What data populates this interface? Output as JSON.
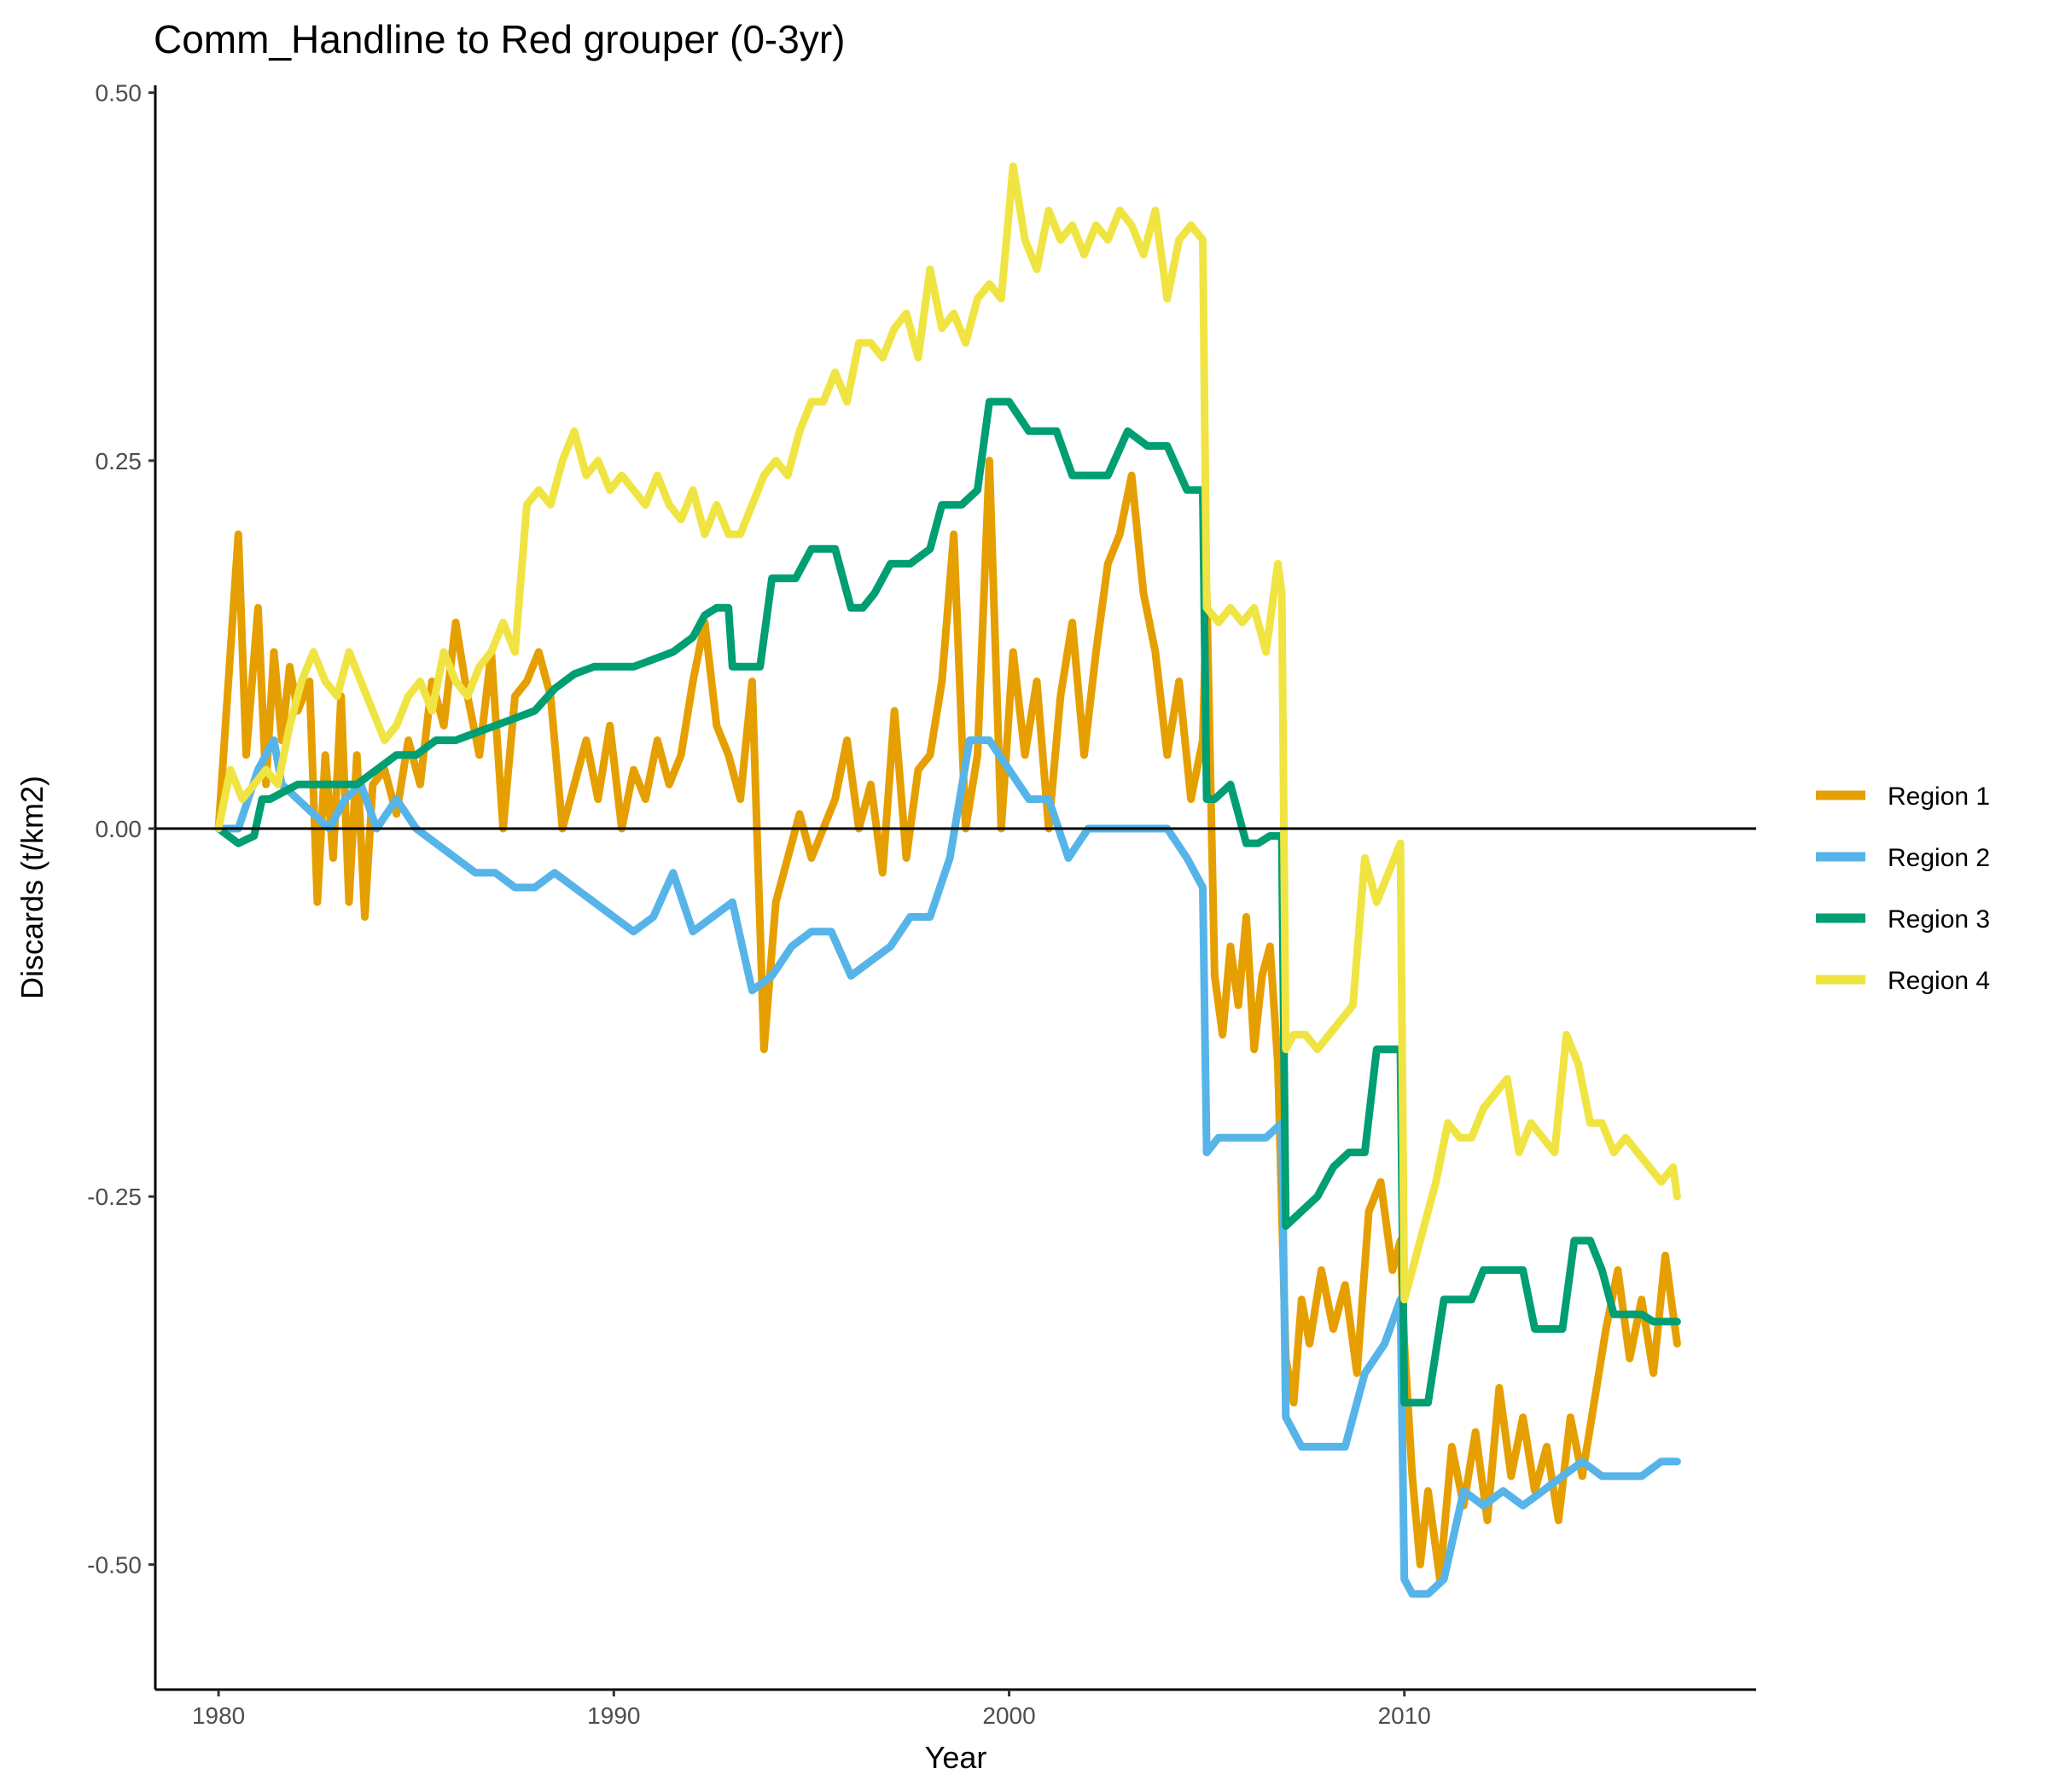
{
  "chart_data": {
    "type": "line",
    "title": "Comm_Handline to Red grouper (0-3yr)",
    "xlabel": "Year",
    "ylabel": "Discards (t/km2)",
    "xlim": [
      1978.4,
      2018.9
    ],
    "ylim": [
      -0.585,
      0.505
    ],
    "x_ticks": [
      1980,
      1990,
      2000,
      2010
    ],
    "x_tick_labels": [
      "1980",
      "1990",
      "2000",
      "2010"
    ],
    "y_ticks": [
      0.5,
      0.25,
      0.0,
      -0.25,
      -0.5
    ],
    "y_tick_labels": [
      "0.50",
      "0.25",
      "0.00",
      "-0.25",
      "-0.50"
    ],
    "hline": 0,
    "grid": false,
    "legend_position": "right",
    "series": [
      {
        "name": "Region 1",
        "color": "#E69F00",
        "x": [
          1980.0,
          1980.3,
          1980.5,
          1980.7,
          1981.0,
          1981.2,
          1981.4,
          1981.6,
          1981.8,
          1982.0,
          1982.3,
          1982.5,
          1982.7,
          1982.9,
          1983.1,
          1983.3,
          1983.5,
          1983.7,
          1983.9,
          1984.2,
          1984.5,
          1984.8,
          1985.1,
          1985.4,
          1985.7,
          1986.0,
          1986.3,
          1986.6,
          1986.9,
          1987.2,
          1987.5,
          1987.8,
          1988.1,
          1988.4,
          1988.7,
          1989.0,
          1989.3,
          1989.6,
          1989.9,
          1990.2,
          1990.5,
          1990.8,
          1991.1,
          1991.4,
          1991.7,
          1992.0,
          1992.3,
          1992.6,
          1992.9,
          1993.2,
          1993.5,
          1993.8,
          1994.1,
          1994.4,
          1994.7,
          1995.0,
          1995.3,
          1995.6,
          1995.9,
          1996.2,
          1996.5,
          1996.8,
          1997.1,
          1997.4,
          1997.7,
          1998.0,
          1998.3,
          1998.6,
          1998.9,
          1999.2,
          1999.5,
          1999.8,
          2000.1,
          2000.4,
          2000.7,
          2001.0,
          2001.3,
          2001.6,
          2001.9,
          2002.2,
          2002.5,
          2002.8,
          2003.1,
          2003.4,
          2003.7,
          2004.0,
          2004.3,
          2004.6,
          2004.9,
          2005.0,
          2005.2,
          2005.4,
          2005.6,
          2005.8,
          2006.0,
          2006.2,
          2006.4,
          2006.6,
          2006.8,
          2007.0,
          2007.2,
          2007.4,
          2007.6,
          2007.9,
          2008.2,
          2008.5,
          2008.8,
          2009.1,
          2009.4,
          2009.7,
          2009.9,
          2010.0,
          2010.2,
          2010.4,
          2010.6,
          2010.9,
          2011.2,
          2011.5,
          2011.8,
          2012.1,
          2012.4,
          2012.7,
          2013.0,
          2013.3,
          2013.6,
          2013.9,
          2014.2,
          2014.5,
          2014.8,
          2015.1,
          2015.4,
          2015.7,
          2016.0,
          2016.3,
          2016.6,
          2016.9
        ],
        "y": [
          0.0,
          0.12,
          0.2,
          0.05,
          0.15,
          0.03,
          0.12,
          0.06,
          0.11,
          0.08,
          0.1,
          -0.05,
          0.05,
          -0.02,
          0.09,
          -0.05,
          0.05,
          -0.06,
          0.03,
          0.04,
          0.01,
          0.06,
          0.03,
          0.1,
          0.07,
          0.14,
          0.09,
          0.05,
          0.12,
          0.0,
          0.09,
          0.1,
          0.12,
          0.09,
          0.0,
          0.03,
          0.06,
          0.02,
          0.07,
          0.0,
          0.04,
          0.02,
          0.06,
          0.03,
          0.05,
          0.1,
          0.14,
          0.07,
          0.05,
          0.02,
          0.1,
          -0.15,
          -0.05,
          -0.02,
          0.01,
          -0.02,
          0.0,
          0.02,
          0.06,
          0.0,
          0.03,
          -0.03,
          0.08,
          -0.02,
          0.04,
          0.05,
          0.1,
          0.2,
          0.0,
          0.05,
          0.25,
          0.0,
          0.12,
          0.05,
          0.1,
          0.0,
          0.09,
          0.14,
          0.05,
          0.12,
          0.18,
          0.2,
          0.24,
          0.16,
          0.12,
          0.05,
          0.1,
          0.02,
          0.06,
          0.16,
          -0.1,
          -0.14,
          -0.08,
          -0.12,
          -0.06,
          -0.15,
          -0.1,
          -0.08,
          -0.16,
          -0.36,
          -0.39,
          -0.32,
          -0.35,
          -0.3,
          -0.34,
          -0.31,
          -0.37,
          -0.26,
          -0.24,
          -0.3,
          -0.28,
          -0.35,
          -0.44,
          -0.5,
          -0.45,
          -0.51,
          -0.42,
          -0.46,
          -0.41,
          -0.47,
          -0.38,
          -0.44,
          -0.4,
          -0.45,
          -0.42,
          -0.47,
          -0.4,
          -0.44,
          -0.39,
          -0.34,
          -0.3,
          -0.36,
          -0.32,
          -0.37,
          -0.29,
          -0.35
        ],
        "stroke": 9
      },
      {
        "name": "Region 2",
        "color": "#56B4E9",
        "x": [
          1980.0,
          1980.5,
          1981.0,
          1981.4,
          1981.6,
          1982.0,
          1982.4,
          1982.8,
          1983.2,
          1983.6,
          1984.0,
          1984.5,
          1985.0,
          1985.5,
          1986.0,
          1986.5,
          1987.0,
          1987.5,
          1988.0,
          1988.5,
          1989.0,
          1989.5,
          1990.0,
          1990.5,
          1991.0,
          1991.5,
          1992.0,
          1992.5,
          1993.0,
          1993.5,
          1994.0,
          1994.5,
          1995.0,
          1995.5,
          1996.0,
          1996.5,
          1997.0,
          1997.5,
          1998.0,
          1998.5,
          1999.0,
          1999.5,
          2000.0,
          2000.5,
          2001.0,
          2001.5,
          2002.0,
          2002.5,
          2003.0,
          2003.5,
          2004.0,
          2004.5,
          2004.9,
          2005.0,
          2005.3,
          2005.6,
          2006.0,
          2006.5,
          2006.9,
          2007.0,
          2007.4,
          2008.0,
          2008.5,
          2009.0,
          2009.5,
          2009.9,
          2010.0,
          2010.2,
          2010.6,
          2011.0,
          2011.5,
          2012.0,
          2012.5,
          2013.0,
          2013.5,
          2014.0,
          2014.5,
          2015.0,
          2015.5,
          2016.0,
          2016.5,
          2016.9
        ],
        "y": [
          0.0,
          0.0,
          0.04,
          0.06,
          0.03,
          0.02,
          0.01,
          0.0,
          0.02,
          0.03,
          0.0,
          0.02,
          0.0,
          -0.01,
          -0.02,
          -0.03,
          -0.03,
          -0.04,
          -0.04,
          -0.03,
          -0.04,
          -0.05,
          -0.06,
          -0.07,
          -0.06,
          -0.03,
          -0.07,
          -0.06,
          -0.05,
          -0.11,
          -0.1,
          -0.08,
          -0.07,
          -0.07,
          -0.1,
          -0.09,
          -0.08,
          -0.06,
          -0.06,
          -0.02,
          0.06,
          0.06,
          0.04,
          0.02,
          0.02,
          -0.02,
          0.0,
          0.0,
          0.0,
          0.0,
          0.0,
          -0.02,
          -0.04,
          -0.22,
          -0.21,
          -0.21,
          -0.21,
          -0.21,
          -0.2,
          -0.4,
          -0.42,
          -0.42,
          -0.42,
          -0.37,
          -0.35,
          -0.32,
          -0.51,
          -0.52,
          -0.52,
          -0.51,
          -0.45,
          -0.46,
          -0.45,
          -0.46,
          -0.45,
          -0.44,
          -0.43,
          -0.44,
          -0.44,
          -0.44,
          -0.43,
          -0.43
        ],
        "stroke": 9
      },
      {
        "name": "Region 3",
        "color": "#009E73",
        "x": [
          1980.0,
          1980.5,
          1980.9,
          1981.1,
          1981.3,
          1982.0,
          1982.5,
          1983.0,
          1983.5,
          1984.0,
          1984.5,
          1985.0,
          1985.5,
          1986.0,
          1986.5,
          1987.0,
          1987.5,
          1988.0,
          1988.5,
          1989.0,
          1989.5,
          1990.0,
          1990.5,
          1991.0,
          1991.5,
          1992.0,
          1992.3,
          1992.6,
          1992.9,
          1993.0,
          1993.3,
          1993.7,
          1994.0,
          1994.3,
          1994.6,
          1995.0,
          1995.3,
          1995.6,
          1996.0,
          1996.3,
          1996.6,
          1997.0,
          1997.5,
          1998.0,
          1998.3,
          1998.8,
          1999.2,
          1999.5,
          2000.0,
          2000.5,
          2000.8,
          2001.2,
          2001.6,
          2002.0,
          2002.5,
          2003.0,
          2003.5,
          2004.0,
          2004.5,
          2004.9,
          2005.0,
          2005.2,
          2005.6,
          2006.0,
          2006.3,
          2006.6,
          2006.9,
          2007.0,
          2007.4,
          2007.8,
          2008.2,
          2008.6,
          2009.0,
          2009.3,
          2009.6,
          2009.9,
          2010.0,
          2010.3,
          2010.6,
          2011.0,
          2011.3,
          2011.7,
          2012.0,
          2012.3,
          2012.7,
          2013.0,
          2013.3,
          2013.7,
          2014.0,
          2014.3,
          2014.7,
          2015.0,
          2015.3,
          2015.7,
          2016.0,
          2016.3,
          2016.6,
          2016.9
        ],
        "y": [
          0.0,
          -0.01,
          -0.005,
          0.02,
          0.02,
          0.03,
          0.03,
          0.03,
          0.03,
          0.04,
          0.05,
          0.05,
          0.06,
          0.06,
          0.065,
          0.07,
          0.075,
          0.08,
          0.095,
          0.105,
          0.11,
          0.11,
          0.11,
          0.115,
          0.12,
          0.13,
          0.145,
          0.15,
          0.15,
          0.11,
          0.11,
          0.11,
          0.17,
          0.17,
          0.17,
          0.19,
          0.19,
          0.19,
          0.15,
          0.15,
          0.16,
          0.18,
          0.18,
          0.19,
          0.22,
          0.22,
          0.23,
          0.29,
          0.29,
          0.27,
          0.27,
          0.27,
          0.24,
          0.24,
          0.24,
          0.27,
          0.26,
          0.26,
          0.23,
          0.23,
          0.02,
          0.02,
          0.03,
          -0.01,
          -0.01,
          -0.005,
          -0.005,
          -0.27,
          -0.26,
          -0.25,
          -0.23,
          -0.22,
          -0.22,
          -0.15,
          -0.15,
          -0.15,
          -0.39,
          -0.39,
          -0.39,
          -0.32,
          -0.32,
          -0.32,
          -0.3,
          -0.3,
          -0.3,
          -0.3,
          -0.34,
          -0.34,
          -0.34,
          -0.28,
          -0.28,
          -0.3,
          -0.33,
          -0.33,
          -0.33,
          -0.335,
          -0.335,
          -0.335
        ],
        "stroke": 9
      },
      {
        "name": "Region 4",
        "color": "#F0E442",
        "x": [
          1980.0,
          1980.3,
          1980.6,
          1980.9,
          1981.2,
          1981.5,
          1981.8,
          1982.1,
          1982.4,
          1982.7,
          1983.0,
          1983.3,
          1983.6,
          1983.9,
          1984.2,
          1984.5,
          1984.8,
          1985.1,
          1985.4,
          1985.7,
          1986.0,
          1986.3,
          1986.6,
          1986.9,
          1987.2,
          1987.5,
          1987.8,
          1988.1,
          1988.4,
          1988.7,
          1989.0,
          1989.3,
          1989.6,
          1989.9,
          1990.2,
          1990.5,
          1990.8,
          1991.1,
          1991.4,
          1991.7,
          1992.0,
          1992.3,
          1992.6,
          1992.9,
          1993.2,
          1993.5,
          1993.8,
          1994.1,
          1994.4,
          1994.7,
          1995.0,
          1995.3,
          1995.6,
          1995.9,
          1996.2,
          1996.5,
          1996.8,
          1997.1,
          1997.4,
          1997.7,
          1998.0,
          1998.3,
          1998.6,
          1998.9,
          1999.2,
          1999.5,
          1999.8,
          2000.1,
          2000.4,
          2000.7,
          2001.0,
          2001.3,
          2001.6,
          2001.9,
          2002.2,
          2002.5,
          2002.8,
          2003.1,
          2003.4,
          2003.7,
          2004.0,
          2004.3,
          2004.6,
          2004.9,
          2005.0,
          2005.3,
          2005.6,
          2005.9,
          2006.2,
          2006.5,
          2006.8,
          2006.9,
          2007.0,
          2007.2,
          2007.5,
          2007.8,
          2008.1,
          2008.4,
          2008.7,
          2009.0,
          2009.3,
          2009.6,
          2009.9,
          2010.0,
          2010.2,
          2010.5,
          2010.8,
          2011.1,
          2011.4,
          2011.7,
          2012.0,
          2012.3,
          2012.6,
          2012.9,
          2013.2,
          2013.5,
          2013.8,
          2014.1,
          2014.4,
          2014.7,
          2015.0,
          2015.3,
          2015.6,
          2015.9,
          2016.2,
          2016.5,
          2016.8,
          2016.9
        ],
        "y": [
          0.0,
          0.04,
          0.02,
          0.03,
          0.04,
          0.03,
          0.07,
          0.1,
          0.12,
          0.1,
          0.09,
          0.12,
          0.1,
          0.08,
          0.06,
          0.07,
          0.09,
          0.1,
          0.08,
          0.12,
          0.1,
          0.09,
          0.11,
          0.12,
          0.14,
          0.12,
          0.22,
          0.23,
          0.22,
          0.25,
          0.27,
          0.24,
          0.25,
          0.23,
          0.24,
          0.23,
          0.22,
          0.24,
          0.22,
          0.21,
          0.23,
          0.2,
          0.22,
          0.2,
          0.2,
          0.22,
          0.24,
          0.25,
          0.24,
          0.27,
          0.29,
          0.29,
          0.31,
          0.29,
          0.33,
          0.33,
          0.32,
          0.34,
          0.35,
          0.32,
          0.38,
          0.34,
          0.35,
          0.33,
          0.36,
          0.37,
          0.36,
          0.45,
          0.4,
          0.38,
          0.42,
          0.4,
          0.41,
          0.39,
          0.41,
          0.4,
          0.42,
          0.41,
          0.39,
          0.42,
          0.36,
          0.4,
          0.41,
          0.4,
          0.15,
          0.14,
          0.15,
          0.14,
          0.15,
          0.12,
          0.18,
          0.16,
          -0.15,
          -0.14,
          -0.14,
          -0.15,
          -0.14,
          -0.13,
          -0.12,
          -0.02,
          -0.05,
          -0.03,
          -0.01,
          -0.32,
          -0.3,
          -0.27,
          -0.24,
          -0.2,
          -0.21,
          -0.21,
          -0.19,
          -0.18,
          -0.17,
          -0.22,
          -0.2,
          -0.21,
          -0.22,
          -0.14,
          -0.16,
          -0.2,
          -0.2,
          -0.22,
          -0.21,
          -0.22,
          -0.23,
          -0.24,
          -0.23,
          -0.25
        ],
        "stroke": 9
      }
    ]
  }
}
